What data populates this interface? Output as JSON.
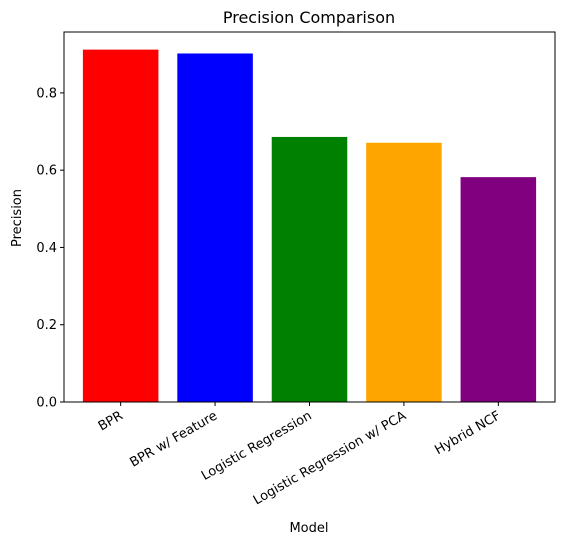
{
  "chart_data": {
    "type": "bar",
    "title": "Precision Comparison",
    "xlabel": "Model",
    "ylabel": "Precision",
    "categories": [
      "BPR",
      "BPR w/ Feature",
      "Logistic Regression",
      "Logistic Regression w/ PCA",
      "Hybrid NCF"
    ],
    "values": [
      0.912,
      0.902,
      0.686,
      0.671,
      0.582
    ],
    "colors": [
      "#ff0000",
      "#0000ff",
      "#008000",
      "#ffa500",
      "#800080"
    ],
    "ylim": [
      0,
      0.9576
    ],
    "yticks": [
      0.0,
      0.2,
      0.4,
      0.6,
      0.8
    ],
    "ytick_labels": [
      "0.0",
      "0.2",
      "0.4",
      "0.6",
      "0.8"
    ],
    "grid": false,
    "legend": "none"
  }
}
